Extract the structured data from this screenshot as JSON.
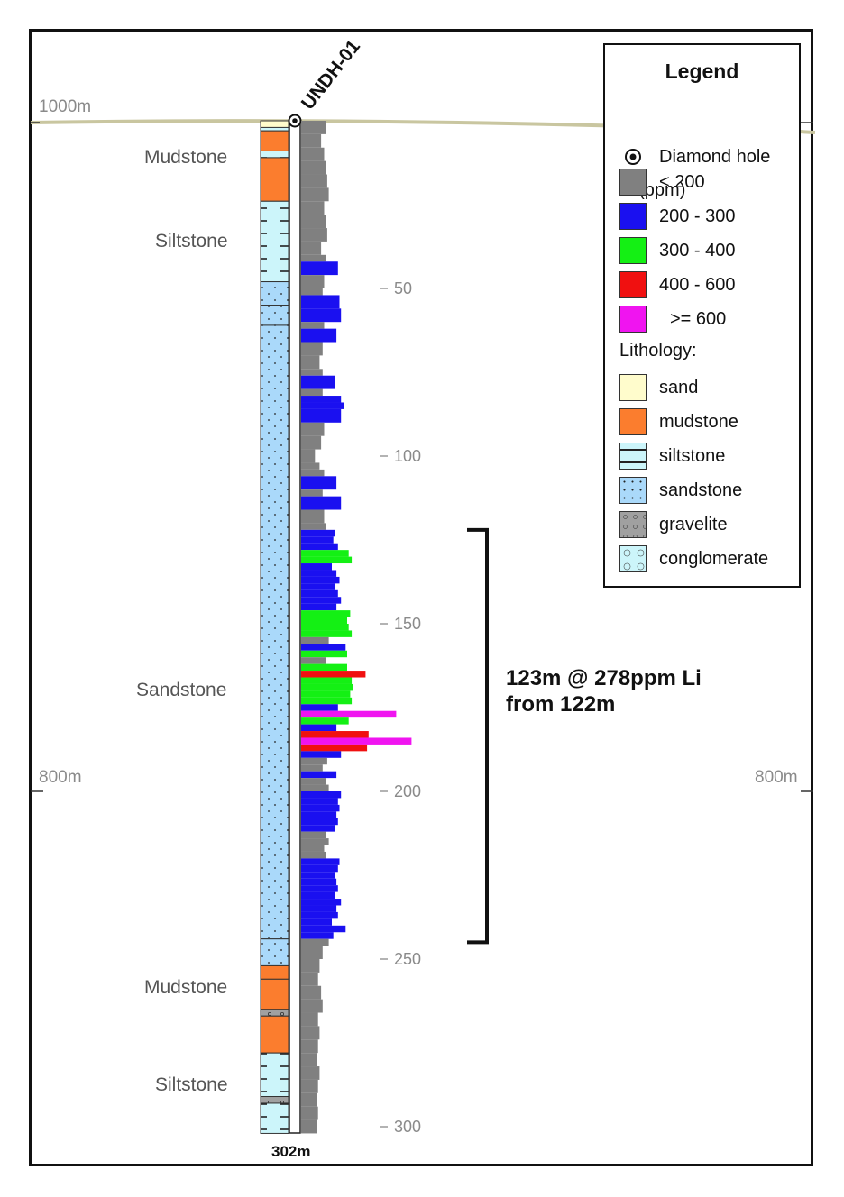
{
  "hole": {
    "name": "UNDH-01",
    "total_depth_label": "302m"
  },
  "elevation_labels": {
    "top": "1000m",
    "mid_left": "800m",
    "mid_right": "800m"
  },
  "depth_ticks": [
    "50",
    "100",
    "150",
    "200",
    "250",
    "300"
  ],
  "lithology_labels": [
    "Mudstone",
    "Siltstone",
    "Sandstone",
    "Mudstone",
    "Siltstone"
  ],
  "intercept": {
    "line1": "123m @ 278ppm Li",
    "line2": "from 122m",
    "from_m": 122,
    "to_m": 245
  },
  "legend": {
    "title": "Legend",
    "diamond_hole": "Diamond hole",
    "li_title": "Li (ppm)",
    "li_classes": [
      {
        "label": "< 200",
        "color": "#808080"
      },
      {
        "label": "200 - 300",
        "color": "#1a10f0"
      },
      {
        "label": "300 - 400",
        "color": "#14f014"
      },
      {
        "label": "400 - 600",
        "color": "#f01010"
      },
      {
        "label": ">= 600",
        "color": "#f014f0"
      }
    ],
    "lith_title": "Lithology:",
    "lithologies": [
      {
        "label": "sand",
        "color": "#fffccc"
      },
      {
        "label": "mudstone",
        "color": "#fb7d2e"
      },
      {
        "label": "siltstone",
        "color": "#ccf5fa"
      },
      {
        "label": "sandstone",
        "color": "#aad9fa"
      },
      {
        "label": "gravelite",
        "color": "#a0a0a0"
      },
      {
        "label": "conglomerate",
        "color": "#ccf5fa"
      }
    ]
  },
  "chart_data": {
    "type": "bar",
    "title": "",
    "xlabel": "",
    "ylabel": "",
    "depth_range_m": [
      0,
      302
    ],
    "li_class_thresholds_ppm": [
      200,
      300,
      400,
      600
    ],
    "li_profile_ppm": [
      [
        0,
        160
      ],
      [
        4,
        130
      ],
      [
        8,
        150
      ],
      [
        12,
        160
      ],
      [
        16,
        170
      ],
      [
        20,
        180
      ],
      [
        24,
        150
      ],
      [
        28,
        160
      ],
      [
        32,
        170
      ],
      [
        36,
        130
      ],
      [
        40,
        160
      ],
      [
        42,
        240
      ],
      [
        46,
        150
      ],
      [
        50,
        140
      ],
      [
        52,
        250
      ],
      [
        56,
        260
      ],
      [
        60,
        150
      ],
      [
        62,
        230
      ],
      [
        66,
        140
      ],
      [
        70,
        120
      ],
      [
        74,
        140
      ],
      [
        76,
        220
      ],
      [
        80,
        140
      ],
      [
        82,
        260
      ],
      [
        84,
        280
      ],
      [
        86,
        260
      ],
      [
        90,
        150
      ],
      [
        94,
        130
      ],
      [
        98,
        90
      ],
      [
        102,
        120
      ],
      [
        104,
        150
      ],
      [
        106,
        230
      ],
      [
        110,
        140
      ],
      [
        112,
        260
      ],
      [
        116,
        150
      ],
      [
        120,
        160
      ],
      [
        122,
        220
      ],
      [
        124,
        210
      ],
      [
        126,
        240
      ],
      [
        128,
        310
      ],
      [
        130,
        330
      ],
      [
        132,
        200
      ],
      [
        134,
        230
      ],
      [
        136,
        250
      ],
      [
        138,
        220
      ],
      [
        140,
        240
      ],
      [
        142,
        260
      ],
      [
        144,
        230
      ],
      [
        146,
        320
      ],
      [
        148,
        300
      ],
      [
        150,
        310
      ],
      [
        152,
        330
      ],
      [
        154,
        180
      ],
      [
        156,
        290
      ],
      [
        158,
        300
      ],
      [
        160,
        160
      ],
      [
        162,
        300
      ],
      [
        164,
        420
      ],
      [
        166,
        330
      ],
      [
        168,
        340
      ],
      [
        170,
        320
      ],
      [
        172,
        330
      ],
      [
        174,
        240
      ],
      [
        176,
        620
      ],
      [
        178,
        310
      ],
      [
        180,
        230
      ],
      [
        182,
        440
      ],
      [
        184,
        720
      ],
      [
        186,
        430
      ],
      [
        188,
        260
      ],
      [
        190,
        170
      ],
      [
        192,
        140
      ],
      [
        194,
        230
      ],
      [
        196,
        160
      ],
      [
        198,
        180
      ],
      [
        200,
        260
      ],
      [
        202,
        240
      ],
      [
        204,
        250
      ],
      [
        206,
        230
      ],
      [
        208,
        240
      ],
      [
        210,
        220
      ],
      [
        212,
        160
      ],
      [
        214,
        180
      ],
      [
        216,
        150
      ],
      [
        218,
        160
      ],
      [
        220,
        250
      ],
      [
        222,
        240
      ],
      [
        224,
        220
      ],
      [
        226,
        230
      ],
      [
        228,
        240
      ],
      [
        230,
        220
      ],
      [
        232,
        260
      ],
      [
        234,
        230
      ],
      [
        236,
        240
      ],
      [
        238,
        200
      ],
      [
        240,
        290
      ],
      [
        242,
        210
      ],
      [
        244,
        180
      ],
      [
        246,
        140
      ],
      [
        250,
        120
      ],
      [
        254,
        110
      ],
      [
        258,
        130
      ],
      [
        262,
        140
      ],
      [
        266,
        110
      ],
      [
        270,
        120
      ],
      [
        274,
        110
      ],
      [
        278,
        100
      ],
      [
        282,
        120
      ],
      [
        286,
        110
      ],
      [
        290,
        100
      ],
      [
        294,
        110
      ],
      [
        298,
        100
      ]
    ],
    "lithology_column": [
      {
        "from": 0,
        "to": 2,
        "lith": "sand"
      },
      {
        "from": 2,
        "to": 3,
        "lith": "siltstone"
      },
      {
        "from": 3,
        "to": 9,
        "lith": "mudstone"
      },
      {
        "from": 9,
        "to": 11,
        "lith": "siltstone"
      },
      {
        "from": 11,
        "to": 24,
        "lith": "mudstone"
      },
      {
        "from": 24,
        "to": 48,
        "lith": "siltstone"
      },
      {
        "from": 48,
        "to": 55,
        "lith": "sandstone"
      },
      {
        "from": 55,
        "to": 61,
        "lith": "sandstone"
      },
      {
        "from": 61,
        "to": 244,
        "lith": "sandstone"
      },
      {
        "from": 244,
        "to": 252,
        "lith": "sandstone"
      },
      {
        "from": 252,
        "to": 256,
        "lith": "mudstone"
      },
      {
        "from": 256,
        "to": 265,
        "lith": "mudstone"
      },
      {
        "from": 265,
        "to": 267,
        "lith": "gravelite"
      },
      {
        "from": 267,
        "to": 278,
        "lith": "mudstone"
      },
      {
        "from": 278,
        "to": 291,
        "lith": "siltstone"
      },
      {
        "from": 291,
        "to": 293,
        "lith": "gravelite"
      },
      {
        "from": 293,
        "to": 302,
        "lith": "siltstone"
      }
    ]
  }
}
